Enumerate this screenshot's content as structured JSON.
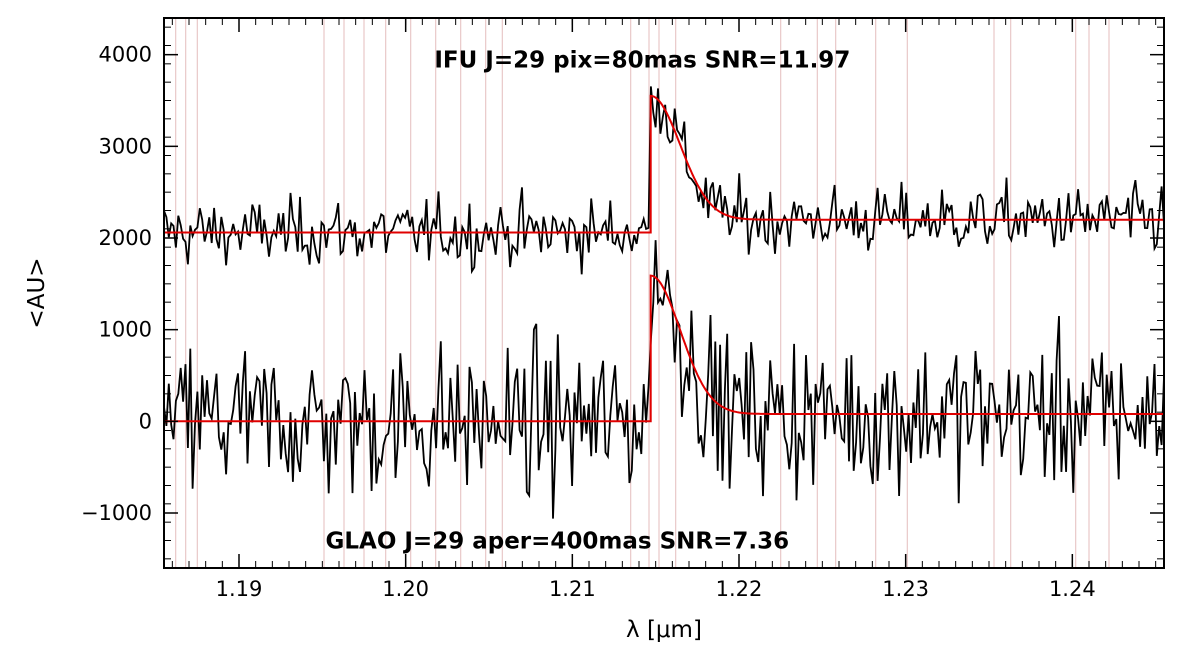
{
  "chart_data": {
    "type": "line",
    "title": "",
    "xlabel": "λ [μm]",
    "ylabel": "<AU>",
    "xlim": [
      1.1855,
      1.2455
    ],
    "ylim": [
      -1600,
      4400
    ],
    "grid": false,
    "legend": "none",
    "x_ticks": [
      1.19,
      1.2,
      1.21,
      1.22,
      1.23,
      1.24
    ],
    "x_tick_labels": [
      "1.19",
      "1.20",
      "1.21",
      "1.22",
      "1.23",
      "1.24"
    ],
    "y_ticks": [
      -1000,
      0,
      1000,
      2000,
      3000,
      4000
    ],
    "y_tick_labels": [
      "−1000",
      "0",
      "1000",
      "2000",
      "3000",
      "4000"
    ],
    "annotations": [
      {
        "text": "IFU J=29 pix=80mas SNR=11.97",
        "x": 1.2142,
        "y": 3950
      },
      {
        "text": "GLAO J=29 aper=400mas SNR=7.36",
        "x": 1.2091,
        "y": -1300
      }
    ],
    "sky_lines_x": [
      1.1862,
      1.1868,
      1.1875,
      1.1951,
      1.1963,
      1.1975,
      1.1988,
      1.2003,
      1.2018,
      1.2033,
      1.2048,
      1.2058,
      1.2135,
      1.2146,
      1.2152,
      1.2162,
      1.2225,
      1.2247,
      1.2258,
      1.2282,
      1.2301,
      1.2353,
      1.2363,
      1.2402,
      1.241,
      1.2422
    ],
    "series": [
      {
        "model": {
          "base_before": 2060,
          "base_after": 2200,
          "step_x": 1.2147,
          "peak": 3550,
          "decay_um": 0.0025
        },
        "noise_sigma": 240,
        "n_points": 420,
        "color_data": "#000000",
        "color_model": "#e00000"
      },
      {
        "model": {
          "base_before": 0,
          "base_after": 80,
          "step_x": 1.2147,
          "peak": 1590,
          "decay_um": 0.0025
        },
        "noise_sigma": 560,
        "n_points": 420,
        "color_data": "#000000",
        "color_model": "#e00000"
      }
    ],
    "sky_line_color": "#e8c8c8"
  }
}
